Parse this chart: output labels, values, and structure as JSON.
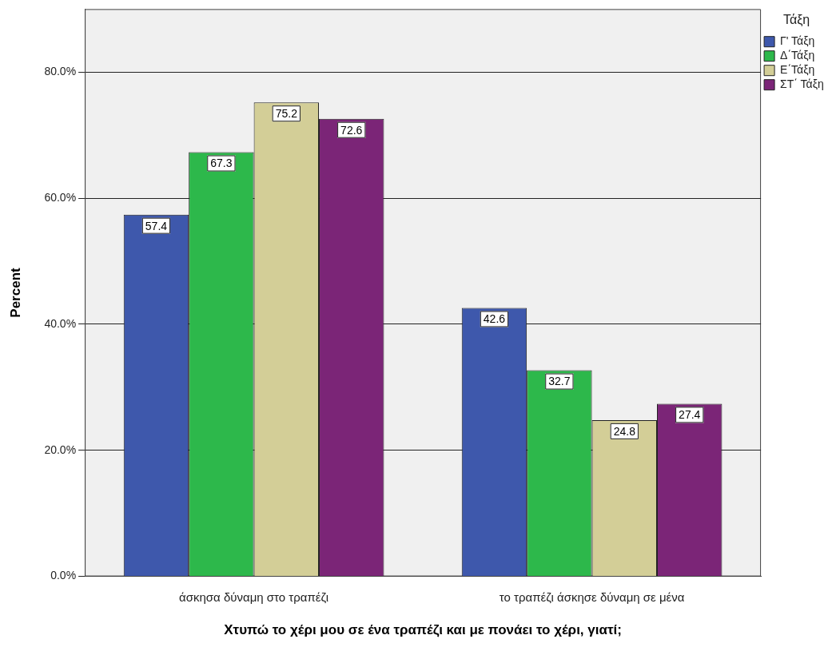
{
  "chart_data": {
    "type": "bar",
    "xlabel": "Χτυπώ το χέρι μου σε ένα τραπέζι και με πονάει το χέρι, γιατί;",
    "ylabel": "Percent",
    "legend_title": "Τάξη",
    "categories": [
      "άσκησα δύναμη στο τραπέζι",
      "το τραπέζι άσκησε δύναμη σε μένα"
    ],
    "series": [
      {
        "name": "Γ' Τάξη",
        "color": "#3e58ac",
        "values": [
          57.4,
          42.6
        ]
      },
      {
        "name": "Δ΄Τάξη",
        "color": "#2db84b",
        "values": [
          67.3,
          32.7
        ]
      },
      {
        "name": "Ε΄Τάξη",
        "color": "#d3ce97",
        "values": [
          75.2,
          24.8
        ]
      },
      {
        "name": "ΣΤ΄ Τάξη",
        "color": "#7b2577",
        "values": [
          72.6,
          27.4
        ]
      }
    ],
    "ylim": [
      0,
      90
    ],
    "yticks": [
      {
        "value": 0,
        "label": "0.0%"
      },
      {
        "value": 20,
        "label": "20.0%"
      },
      {
        "value": 40,
        "label": "40.0%"
      },
      {
        "value": 60,
        "label": "60.0%"
      },
      {
        "value": 80,
        "label": "80.0%"
      }
    ],
    "grid": "y",
    "legend": "top right",
    "data_labels": true
  }
}
